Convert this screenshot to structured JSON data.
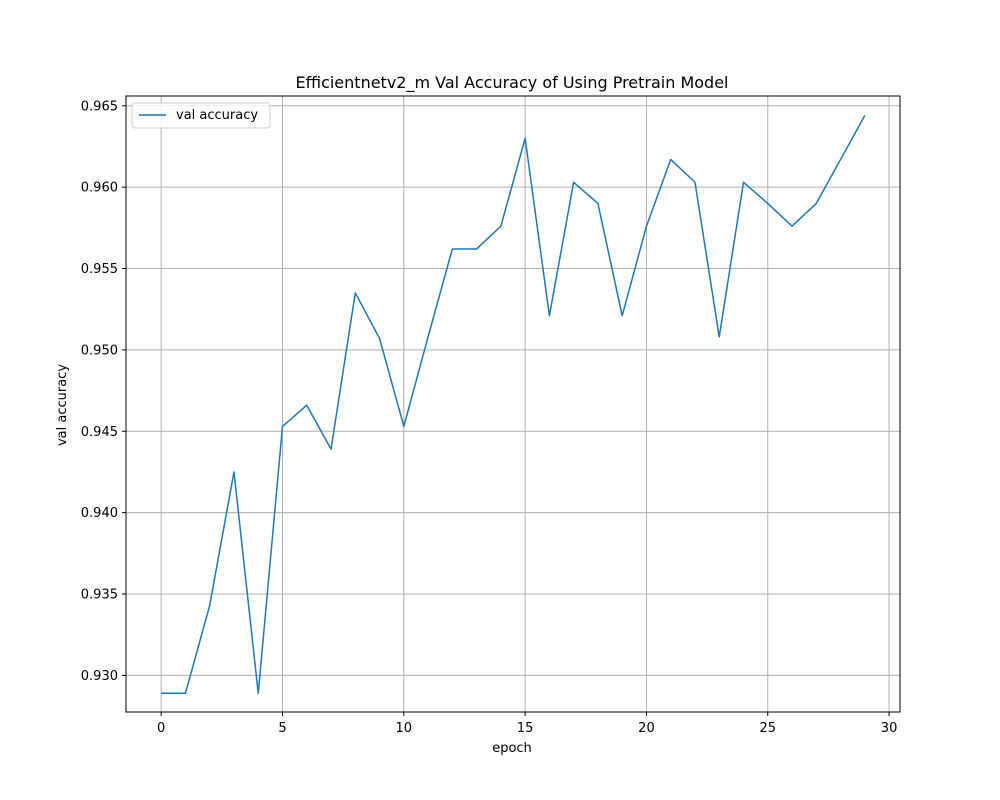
{
  "chart_data": {
    "type": "line",
    "title": "Efficientnetv2_m Val Accuracy of Using Pretrain Model",
    "xlabel": "epoch",
    "ylabel": "val accuracy",
    "xlim": [
      -1.45,
      30.45
    ],
    "ylim": [
      0.92775,
      0.9656
    ],
    "xticks": [
      0,
      5,
      10,
      15,
      20,
      25,
      30
    ],
    "yticks": [
      0.93,
      0.935,
      0.94,
      0.945,
      0.95,
      0.955,
      0.96,
      0.965
    ],
    "xtick_labels": [
      "0",
      "5",
      "10",
      "15",
      "20",
      "25",
      "30"
    ],
    "ytick_labels": [
      "0.930",
      "0.935",
      "0.940",
      "0.945",
      "0.950",
      "0.955",
      "0.960",
      "0.965"
    ],
    "grid": true,
    "legend_position": "upper left",
    "series": [
      {
        "name": "val accuracy",
        "color": "#1f77b4",
        "x": [
          0,
          1,
          2,
          3,
          4,
          5,
          6,
          7,
          8,
          9,
          10,
          11,
          12,
          13,
          14,
          15,
          16,
          17,
          18,
          19,
          20,
          21,
          22,
          23,
          24,
          25,
          26,
          27,
          28,
          29
        ],
        "y": [
          0.9289,
          0.9289,
          0.9343,
          0.9425,
          0.9289,
          0.9453,
          0.9466,
          0.9439,
          0.9535,
          0.9507,
          0.9453,
          0.9508,
          0.9562,
          0.9562,
          0.9576,
          0.963,
          0.9521,
          0.9603,
          0.959,
          0.9521,
          0.9576,
          0.9617,
          0.9603,
          0.9508,
          0.9603,
          0.959,
          0.9576,
          0.959,
          0.9617,
          0.9644
        ]
      }
    ]
  }
}
